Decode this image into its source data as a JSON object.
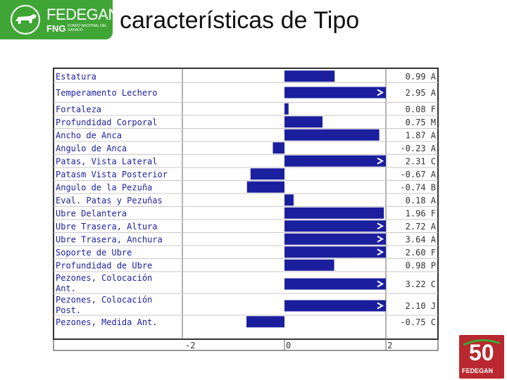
{
  "header": {
    "title": "características de Tipo",
    "logo_brand": "FEDEGAN",
    "logo_sub": "FNG",
    "logo_sub_small": "FONDO NACIONAL DEL GANADO"
  },
  "anniversary_logo": {
    "number": "50",
    "text": "FEDEGAN"
  },
  "colors": {
    "bar": "#1b1f9e",
    "green": "#3fa535",
    "red": "#b8282e"
  },
  "chart_data": {
    "type": "bar",
    "orientation": "horizontal",
    "xlim": [
      -2,
      2
    ],
    "x_ticks": [
      "-2",
      "0",
      "2"
    ],
    "rows": [
      {
        "label": "Estatura",
        "value": 0.99,
        "value_text": "0.99 A",
        "overflow": false
      },
      {
        "label": "Temperamento Lechero",
        "value": 2.95,
        "value_text": "2.95 A",
        "overflow": true
      },
      {
        "label": "Fortaleza",
        "value": 0.08,
        "value_text": "0.08 F",
        "overflow": false
      },
      {
        "label": "Profundidad Corporal",
        "value": 0.75,
        "value_text": "0.75 M",
        "overflow": false
      },
      {
        "label": "Ancho de Anca",
        "value": 1.87,
        "value_text": "1.87 A",
        "overflow": false
      },
      {
        "label": "Angulo de Anca",
        "value": -0.23,
        "value_text": "-0.23 A",
        "overflow": false
      },
      {
        "label": "Patas, Vista Lateral",
        "value": 2.31,
        "value_text": "2.31 C",
        "overflow": true
      },
      {
        "label": "Patasm Vista Posterior",
        "value": -0.67,
        "value_text": "-0.67 A",
        "overflow": false
      },
      {
        "label": "Angulo de la Pezuña",
        "value": -0.74,
        "value_text": "-0.74 B",
        "overflow": false
      },
      {
        "label": "Eval. Patas y Pezuñas",
        "value": 0.18,
        "value_text": "0.18 A",
        "overflow": false
      },
      {
        "label": "Ubre Delantera",
        "value": 1.96,
        "value_text": "1.96 F",
        "overflow": false
      },
      {
        "label": "Ubre Trasera, Altura",
        "value": 2.72,
        "value_text": "2.72 A",
        "overflow": true
      },
      {
        "label": "Ubre Trasera, Anchura",
        "value": 3.64,
        "value_text": "3.64 A",
        "overflow": true
      },
      {
        "label": "Soporte de Ubre",
        "value": 2.6,
        "value_text": "2.60 F",
        "overflow": true
      },
      {
        "label": "Profundidad de Ubre",
        "value": 0.98,
        "value_text": "0.98 P",
        "overflow": false
      },
      {
        "label": "Pezones, Colocación Ant.",
        "value": 3.22,
        "value_text": "3.22 C",
        "overflow": true
      },
      {
        "label": "Pezones, Colocación Post.",
        "value": 2.1,
        "value_text": "2.10 J",
        "overflow": true
      },
      {
        "label": "Pezones, Medida Ant.",
        "value": -0.75,
        "value_text": "-0.75 C",
        "overflow": false
      }
    ]
  }
}
